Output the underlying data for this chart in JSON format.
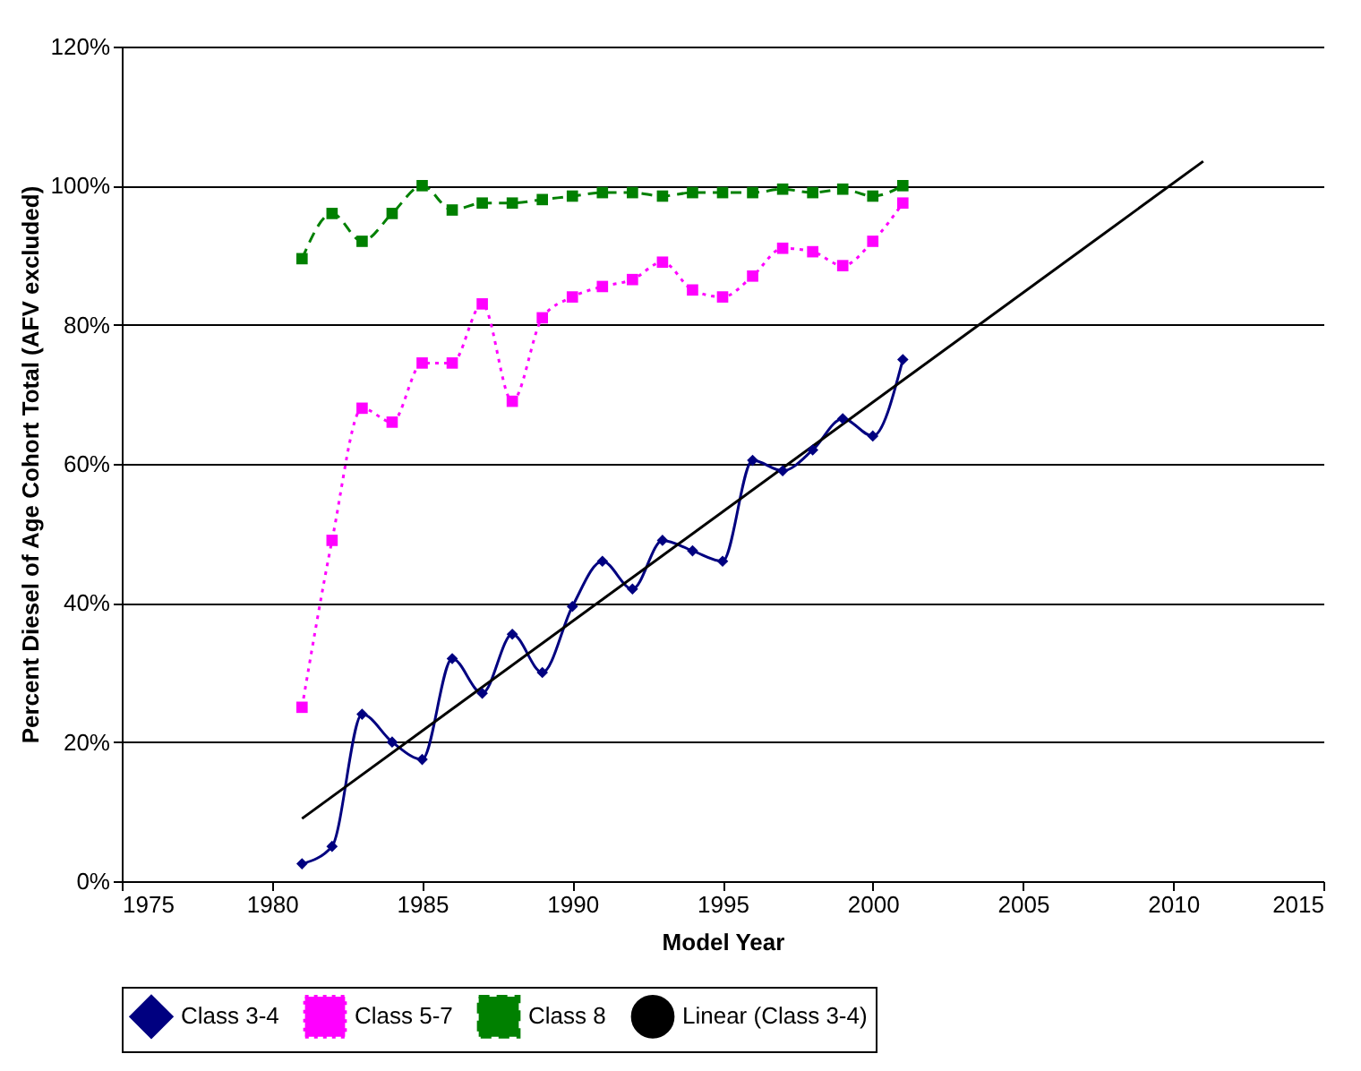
{
  "chart_data": {
    "type": "line",
    "xlabel": "Model Year",
    "ylabel": "Percent Diesel of Age Cohort Total (AFV excluded)",
    "x": [
      1981,
      1982,
      1983,
      1984,
      1985,
      1986,
      1987,
      1988,
      1989,
      1990,
      1991,
      1992,
      1993,
      1994,
      1995,
      1996,
      1997,
      1998,
      1999,
      2000,
      2001
    ],
    "series": [
      {
        "name": "Class 3-4",
        "color": "#000080",
        "marker": "diamond",
        "line_style": "solid",
        "values": [
          2.5,
          5,
          24,
          20,
          17.5,
          32,
          27,
          35.5,
          30,
          39.5,
          46,
          42,
          49,
          47.5,
          46,
          60.5,
          59,
          62,
          66.5,
          64,
          75
        ]
      },
      {
        "name": "Class 5-7",
        "color": "#ff00ff",
        "marker": "square",
        "line_style": "dotted",
        "values": [
          25,
          49,
          68,
          66,
          74.5,
          74.5,
          83,
          69,
          81,
          84,
          85.5,
          86.5,
          89,
          85,
          84,
          87,
          91,
          90.5,
          88.5,
          92,
          97.5
        ]
      },
      {
        "name": "Class 8",
        "color": "#008000",
        "marker": "square",
        "line_style": "dashed",
        "values": [
          89.5,
          96,
          92,
          96,
          100,
          96.5,
          97.5,
          97.5,
          98,
          98.5,
          99,
          99,
          98.5,
          99,
          99,
          99,
          99.5,
          99,
          99.5,
          98.5,
          100
        ]
      },
      {
        "name": "Linear (Class 3-4)",
        "color": "#000000",
        "marker": "none",
        "line_style": "solid",
        "x": [
          1981,
          2011
        ],
        "values": [
          9,
          103.5
        ]
      }
    ],
    "xlim": [
      1975,
      2015
    ],
    "xticks": [
      1975,
      1980,
      1985,
      1990,
      1995,
      2000,
      2005,
      2010,
      2015
    ],
    "ylim": [
      0,
      120
    ],
    "yticks": [
      {
        "value": 0,
        "label": "0%"
      },
      {
        "value": 20,
        "label": "20%"
      },
      {
        "value": 40,
        "label": "40%"
      },
      {
        "value": 60,
        "label": "60%"
      },
      {
        "value": 80,
        "label": "80%"
      },
      {
        "value": 100,
        "label": "100%"
      },
      {
        "value": 120,
        "label": "120%"
      }
    ],
    "grid": "y",
    "legend": "bottom"
  }
}
